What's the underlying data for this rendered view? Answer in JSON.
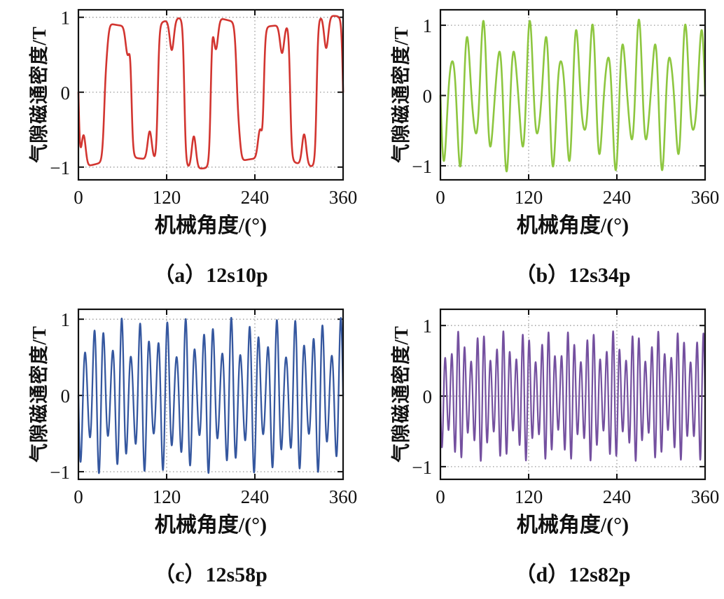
{
  "page": {
    "background": "#ffffff",
    "layout": "2x2-subplot-figure"
  },
  "chart_data": [
    {
      "type": "line",
      "panel": "a",
      "caption": "（a）12s10p",
      "xlabel": "机械角度/(°)",
      "ylabel": "气隙磁通密度/T",
      "xlim": [
        0,
        360
      ],
      "ylim": [
        -1.17,
        1.1
      ],
      "x_ticks": [
        0,
        120,
        240,
        360
      ],
      "x_tick_labels": [
        "0",
        "120",
        "240",
        "360"
      ],
      "y_ticks": [
        1,
        0,
        -1
      ],
      "y_tick_labels": [
        "1",
        "0",
        "−1"
      ],
      "x_grid": [
        120,
        240
      ],
      "y_grid": [
        1,
        0,
        -1
      ],
      "grid_style": "dotted",
      "legend": "none",
      "series": [
        {
          "name": "12s10p air-gap flux density",
          "color": "#d23530",
          "line_width": 2.6,
          "waveform": "slotted-square",
          "pole_pairs": 5,
          "slots": 12,
          "amplitude": 1.0,
          "peak_T": 1.0,
          "edge_sharpness": 5,
          "env_base": 0.95,
          "env_amp": 0.07,
          "env_phase": 0.6,
          "slot_offset_deg": 7,
          "notch_depth": 0.42,
          "notch_width_deg": 2.8
        }
      ]
    },
    {
      "type": "line",
      "panel": "b",
      "caption": "（b）12s34p",
      "xlabel": "机械角度/(°)",
      "ylabel": "气隙磁通密度/T",
      "xlim": [
        0,
        360
      ],
      "ylim": [
        -1.2,
        1.22
      ],
      "x_ticks": [
        0,
        120,
        240,
        360
      ],
      "x_tick_labels": [
        "0",
        "120",
        "240",
        "360"
      ],
      "y_ticks": [
        1,
        0,
        -1
      ],
      "y_tick_labels": [
        "1",
        "0",
        "−1"
      ],
      "x_grid": [
        120,
        240
      ],
      "y_grid": [
        1,
        0,
        -1
      ],
      "grid_style": "dotted",
      "legend": "none",
      "series": [
        {
          "name": "12s34p air-gap flux density",
          "color": "#8dc63f",
          "line_width": 2.6,
          "waveform": "modulated-sine",
          "pole_pairs": 17,
          "slots": 12,
          "amplitude": 1.0,
          "peak_T": 1.08,
          "env_base": 0.78,
          "env_amp": 0.3,
          "env_phase": 0.0
        }
      ]
    },
    {
      "type": "line",
      "panel": "c",
      "caption": "（c）12s58p",
      "xlabel": "机械角度/(°)",
      "ylabel": "气隙磁通密度/T",
      "xlim": [
        0,
        360
      ],
      "ylim": [
        -1.1,
        1.13
      ],
      "x_ticks": [
        0,
        120,
        240,
        360
      ],
      "x_tick_labels": [
        "0",
        "120",
        "240",
        "360"
      ],
      "y_ticks": [
        1,
        0,
        -1
      ],
      "y_tick_labels": [
        "1",
        "0",
        "−1"
      ],
      "x_grid": [
        120,
        240
      ],
      "y_grid": [
        1,
        0,
        -1
      ],
      "grid_style": "dotted",
      "legend": "none",
      "series": [
        {
          "name": "12s58p air-gap flux density",
          "color": "#35579f",
          "line_width": 2.3,
          "waveform": "modulated-sine",
          "pole_pairs": 29,
          "slots": 12,
          "amplitude": 1.0,
          "peak_T": 1.02,
          "env_base": 0.76,
          "env_amp": 0.26,
          "env_phase": 0.5
        }
      ]
    },
    {
      "type": "line",
      "panel": "d",
      "caption": "（d）12s82p",
      "xlabel": "机械角度/(°)",
      "ylabel": "气隙磁通密度/T",
      "xlim": [
        0,
        360
      ],
      "ylim": [
        -1.18,
        1.23
      ],
      "x_ticks": [
        0,
        120,
        240,
        360
      ],
      "x_tick_labels": [
        "0",
        "120",
        "240",
        "360"
      ],
      "y_ticks": [
        1,
        0,
        -1
      ],
      "y_tick_labels": [
        "1",
        "0",
        "−1"
      ],
      "x_grid": [
        120,
        240
      ],
      "y_grid": [
        1,
        0,
        -1
      ],
      "grid_style": "dotted",
      "legend": "none",
      "series": [
        {
          "name": "12s82p air-gap flux density",
          "color": "#74509f",
          "line_width": 2.2,
          "waveform": "modulated-sine",
          "pole_pairs": 41,
          "slots": 12,
          "amplitude": 1.0,
          "peak_T": 0.92,
          "env_base": 0.7,
          "env_amp": 0.22,
          "env_phase": 1.0
        }
      ]
    }
  ]
}
